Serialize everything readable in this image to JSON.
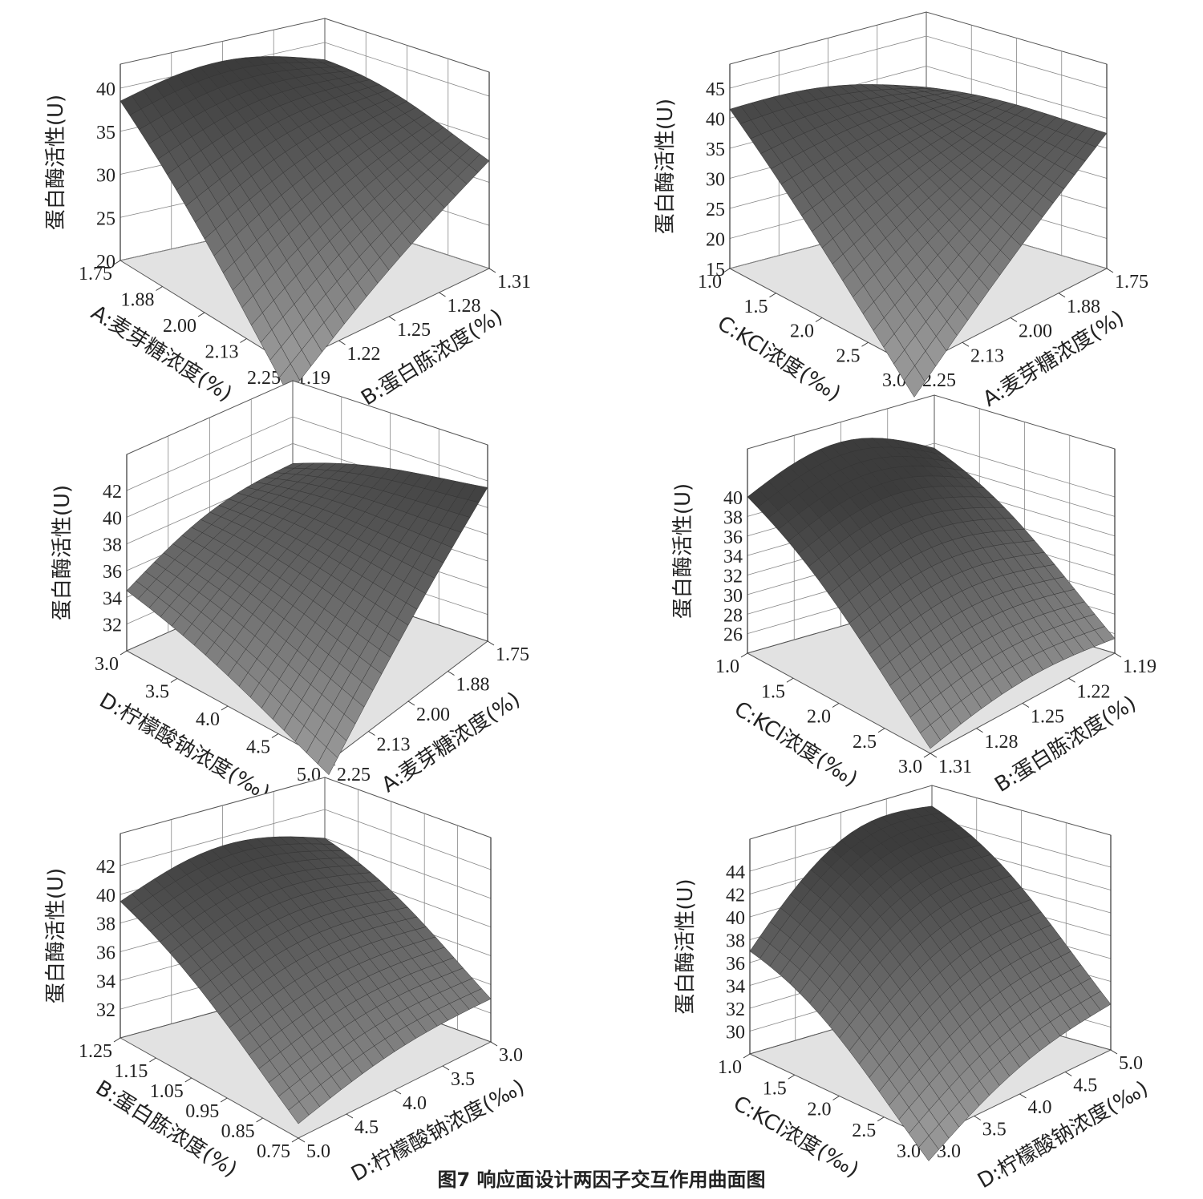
{
  "figure": {
    "caption": "图7   响应面设计两因子交互作用曲面图"
  },
  "chart_data": [
    {
      "type": "surface",
      "zlabel": "蛋白酶活性(U)",
      "zticks": [
        "40",
        "35",
        "30",
        "25",
        "20"
      ],
      "x_axis": {
        "label": "A:麦芽糖浓度(%)",
        "ticks": [
          "1.75",
          "1.88",
          "2.00",
          "2.13",
          "2.25"
        ],
        "range": [
          1.75,
          2.25
        ]
      },
      "y_axis": {
        "label": "B:蛋白胨浓度(%)",
        "ticks": [
          "1.19",
          "1.22",
          "1.25",
          "1.28",
          "1.31"
        ],
        "range": [
          1.19,
          1.31
        ]
      },
      "zlim": [
        20,
        40
      ],
      "corner_values": {
        "near": 16.5,
        "left": 38.5,
        "right": 32.5,
        "back": 38.0
      },
      "peak": 41.0
    },
    {
      "type": "surface",
      "zlabel": "蛋白酶活性(U)",
      "zticks": [
        "45",
        "40",
        "35",
        "30",
        "25",
        "20",
        "15"
      ],
      "x_axis": {
        "label": "C:KCl浓度(‰)",
        "ticks": [
          "1.0",
          "1.5",
          "2.0",
          "2.5",
          "3.0"
        ],
        "range": [
          1.0,
          3.0
        ]
      },
      "y_axis": {
        "label": "A:麦芽糖浓度(%)",
        "ticks": [
          "2.25",
          "2.13",
          "2.00",
          "1.88",
          "1.75"
        ],
        "range": [
          1.75,
          2.25
        ]
      },
      "zlim": [
        15,
        45
      ],
      "corner_values": {
        "near": 10.0,
        "left": 41.5,
        "right": 37.5,
        "back": 36.5
      },
      "peak": 42.5
    },
    {
      "type": "surface",
      "zlabel": "蛋白酶活性(U)",
      "zticks": [
        "42",
        "40",
        "38",
        "36",
        "34",
        "32"
      ],
      "x_axis": {
        "label": "D:柠檬酸钠浓度(‰)",
        "ticks": [
          "3.0",
          "3.5",
          "4.0",
          "4.5",
          "5.0"
        ],
        "range": [
          3.0,
          5.0
        ]
      },
      "y_axis": {
        "label": "A:麦芽糖浓度(%)",
        "ticks": [
          "2.25",
          "2.13",
          "2.00",
          "1.88",
          "1.75"
        ],
        "range": [
          1.75,
          2.25
        ]
      },
      "zlim": [
        30,
        42
      ],
      "corner_values": {
        "near": 29.0,
        "left": 34.5,
        "right": 41.5,
        "back": 38.5
      },
      "peak": 40.5
    },
    {
      "type": "surface",
      "zlabel": "蛋白酶活性(U)",
      "zticks": [
        "40",
        "38",
        "36",
        "34",
        "32",
        "30",
        "28",
        "26"
      ],
      "x_axis": {
        "label": "C:KCl浓度(‰)",
        "ticks": [
          "1.0",
          "1.5",
          "2.0",
          "2.5",
          "3.0"
        ],
        "range": [
          1.0,
          3.0
        ]
      },
      "y_axis": {
        "label": "B:蛋白胨浓度(%)",
        "ticks": [
          "1.31",
          "1.28",
          "1.25",
          "1.22",
          "1.19"
        ],
        "range": [
          1.19,
          1.31
        ]
      },
      "zlim": [
        24,
        40
      ],
      "corner_values": {
        "near": 24.5,
        "left": 40.0,
        "right": 25.5,
        "back": 39.5
      },
      "peak": 41.5
    },
    {
      "type": "surface",
      "zlabel": "蛋白酶活性(U)",
      "zticks": [
        "42",
        "40",
        "38",
        "36",
        "34",
        "32"
      ],
      "x_axis": {
        "label": "B:蛋白胨浓度(%)",
        "ticks": [
          "1.25",
          "1.15",
          "1.05",
          "0.95",
          "0.85",
          "0.75"
        ],
        "range": [
          0.75,
          1.25
        ]
      },
      "y_axis": {
        "label": "D:柠檬酸钠浓度(‰)",
        "ticks": [
          "5.0",
          "4.5",
          "4.0",
          "3.5",
          "3.0"
        ],
        "range": [
          3.0,
          5.0
        ]
      },
      "zlim": [
        30,
        42
      ],
      "corner_values": {
        "near": 31.0,
        "left": 39.5,
        "right": 33.0,
        "back": 40.0
      },
      "peak": 41.0
    },
    {
      "type": "surface",
      "zlabel": "蛋白酶活性(U)",
      "zticks": [
        "44",
        "42",
        "40",
        "38",
        "36",
        "34",
        "32",
        "30"
      ],
      "x_axis": {
        "label": "C:KCl浓度(‰)",
        "ticks": [
          "1.0",
          "1.5",
          "2.0",
          "2.5",
          "3.0"
        ],
        "range": [
          1.0,
          3.0
        ]
      },
      "y_axis": {
        "label": "D:柠檬酸钠浓度(‰)",
        "ticks": [
          "3.0",
          "3.5",
          "4.0",
          "4.5",
          "5.0"
        ],
        "range": [
          3.0,
          5.0
        ]
      },
      "zlim": [
        28,
        44
      ],
      "corner_values": {
        "near": 26.0,
        "left": 37.0,
        "right": 32.0,
        "back": 45.0
      },
      "peak": 45.0
    }
  ]
}
